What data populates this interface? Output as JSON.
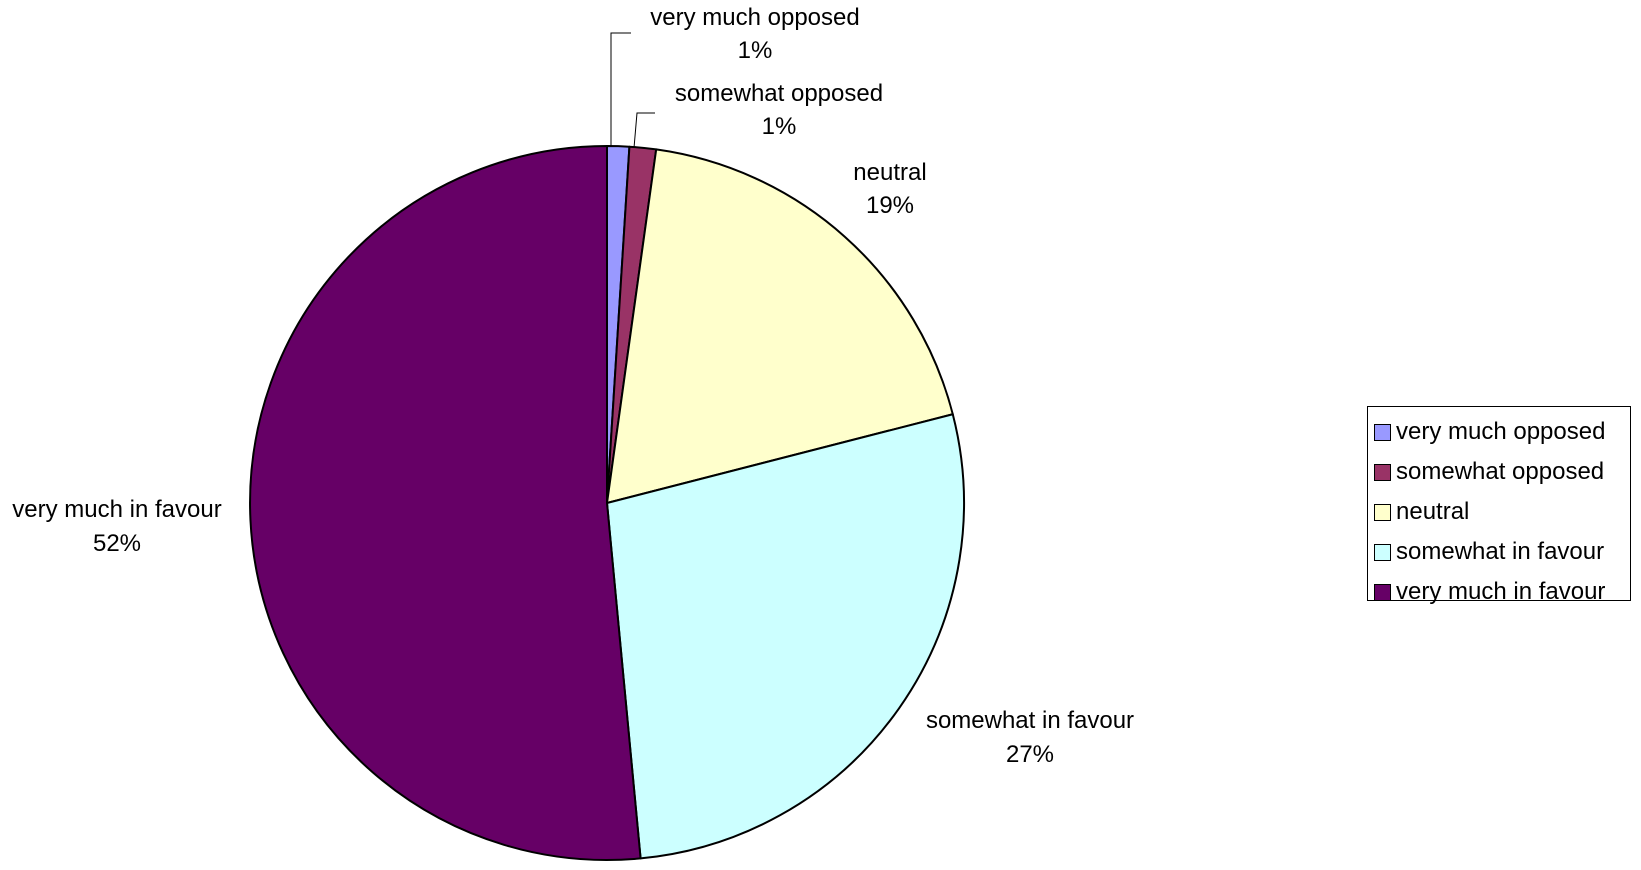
{
  "chart_data": {
    "type": "pie",
    "title": "",
    "slices": [
      {
        "name": "very much opposed",
        "value": 1,
        "label": "1%",
        "color": "#9999ff"
      },
      {
        "name": "somewhat opposed",
        "value": 1.2,
        "label": "1%",
        "color": "#993366"
      },
      {
        "name": "neutral",
        "value": 18.8,
        "label": "19%",
        "color": "#ffffcc"
      },
      {
        "name": "somewhat in favour",
        "value": 27.5,
        "label": "27%",
        "color": "#ccffff"
      },
      {
        "name": "very much in favour",
        "value": 51.5,
        "label": "52%",
        "color": "#660066"
      }
    ],
    "start": "top",
    "direction": "clockwise",
    "legend": {
      "position": "right",
      "entries": [
        "very much opposed",
        "somewhat opposed",
        "neutral",
        "somewhat in favour",
        "very much in favour"
      ]
    }
  }
}
